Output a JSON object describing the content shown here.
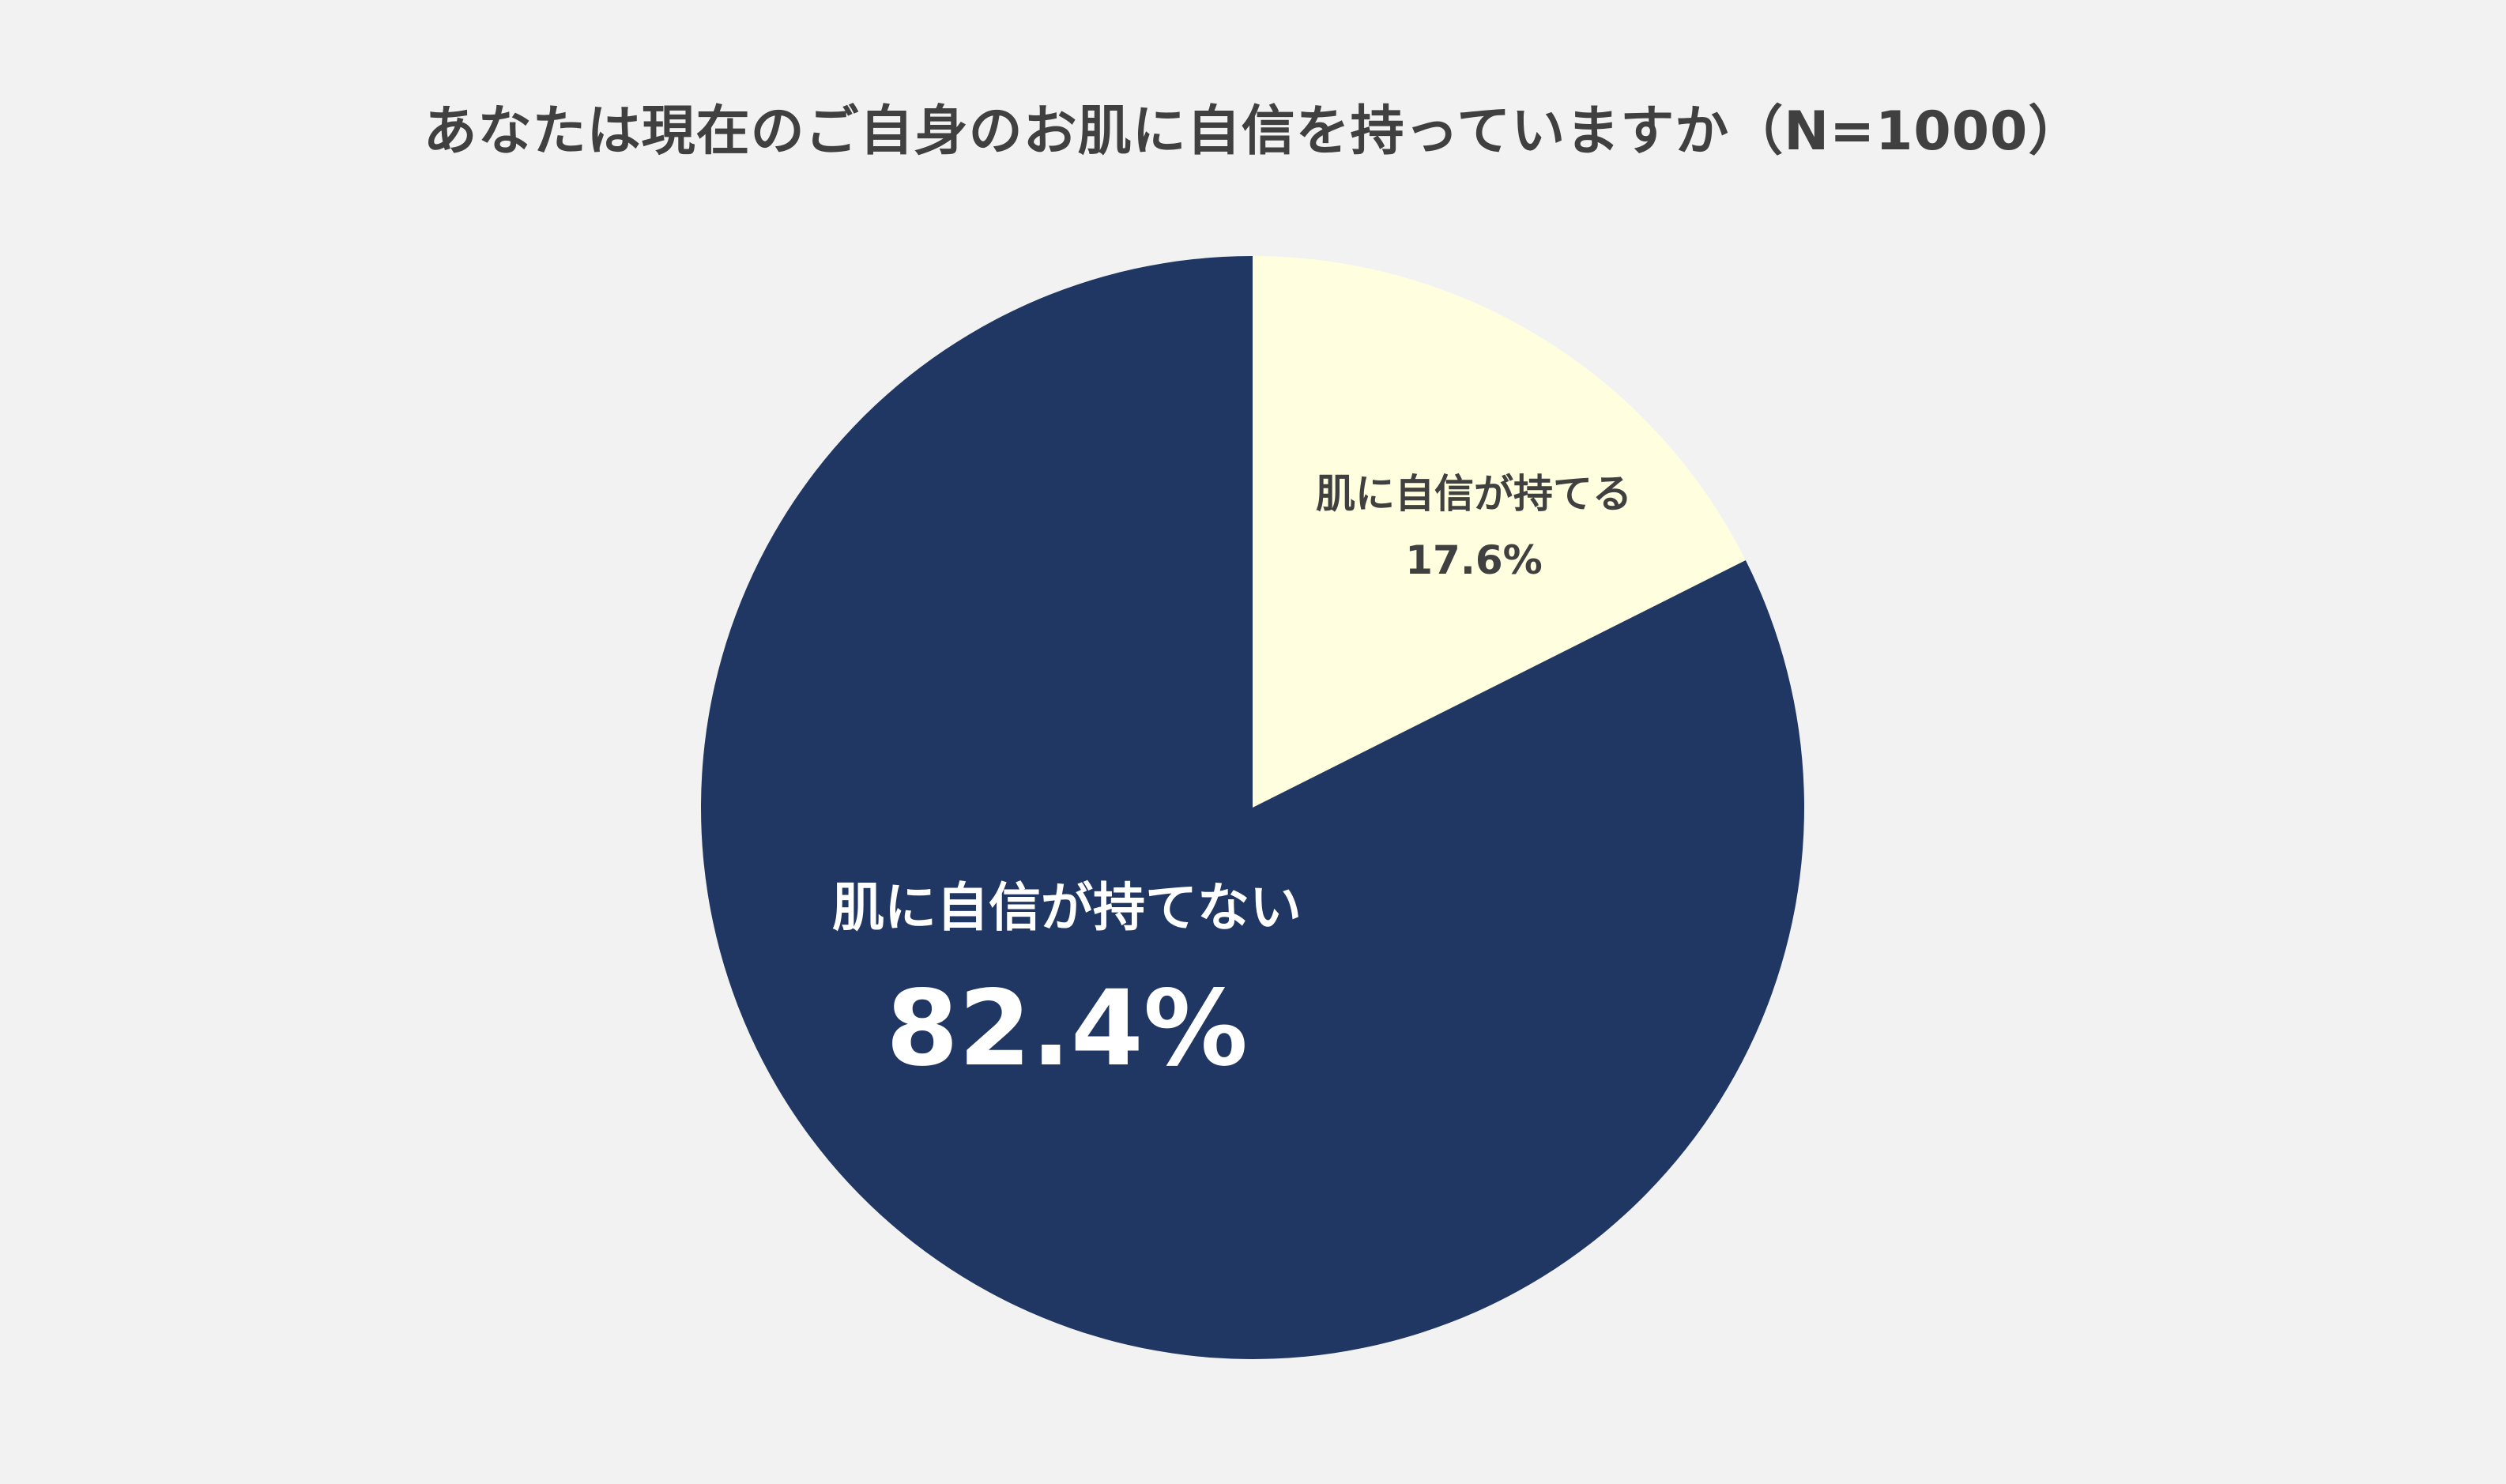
{
  "chart_data": {
    "type": "pie",
    "title": "あなたは現在のご自身のお肌に自信を持っていますか（N=1000）",
    "slices": [
      {
        "label": "肌に自信が持てる",
        "value": 17.6,
        "value_label": "17.6%",
        "color": "#ffffe0",
        "label_color": "#404040"
      },
      {
        "label": "肌に自信が持てない",
        "value": 82.4,
        "value_label": "82.4%",
        "color": "#213763",
        "label_color": "#ffffff"
      }
    ],
    "start": "12 o'clock",
    "direction": "clockwise",
    "legend": "none"
  }
}
